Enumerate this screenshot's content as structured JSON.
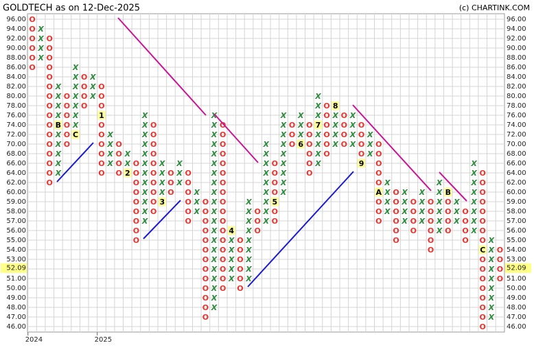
{
  "chart_data": {
    "type": "point-and-figure",
    "title": "GOLDTECH as on 12-Dec-2025",
    "credit": "(c) CHARTINK.COM",
    "x_color": "#2e8b3e",
    "o_color": "#e8332e",
    "grid": true,
    "yticks": [
      {
        "value": 96,
        "label": "96.00"
      },
      {
        "value": 94,
        "label": "94.00"
      },
      {
        "value": 92,
        "label": "92.00"
      },
      {
        "value": 90,
        "label": "90.00"
      },
      {
        "value": 88,
        "label": "88.00"
      },
      {
        "value": 86,
        "label": "86.00"
      },
      {
        "value": 84,
        "label": "84.00"
      },
      {
        "value": 82,
        "label": "82.00"
      },
      {
        "value": 80,
        "label": "80.00"
      },
      {
        "value": 78,
        "label": "78.00"
      },
      {
        "value": 76,
        "label": "76.00"
      },
      {
        "value": 74,
        "label": "74.00"
      },
      {
        "value": 72,
        "label": "72.00"
      },
      {
        "value": 70,
        "label": "70.00"
      },
      {
        "value": 68,
        "label": "68.00"
      },
      {
        "value": 66,
        "label": "66.00"
      },
      {
        "value": 64,
        "label": "64.00"
      },
      {
        "value": 62,
        "label": "62.00"
      },
      {
        "value": 60,
        "label": "60.00"
      },
      {
        "value": 59,
        "label": "59.00"
      },
      {
        "value": 58,
        "label": "58.00"
      },
      {
        "value": 57,
        "label": "57.00"
      },
      {
        "value": 56,
        "label": "56.00"
      },
      {
        "value": 55,
        "label": "55.00"
      },
      {
        "value": 54,
        "label": "54.00"
      },
      {
        "value": 53,
        "label": "53.00"
      },
      {
        "value": 52,
        "label": "52.00"
      },
      {
        "value": 51,
        "label": "51.00"
      },
      {
        "value": 50,
        "label": "50.00"
      },
      {
        "value": 49,
        "label": "49.00"
      },
      {
        "value": 48,
        "label": "48.00"
      },
      {
        "value": 47,
        "label": "47.00"
      },
      {
        "value": 46,
        "label": "46.00"
      }
    ],
    "last_price": {
      "value": 52.09,
      "label": "52.09"
    },
    "categories": [
      "2024",
      null,
      null,
      null,
      null,
      null,
      null,
      null,
      "2025",
      null,
      null,
      null,
      null,
      null,
      null,
      null,
      null,
      null,
      null,
      null,
      null,
      null,
      null,
      null,
      null,
      null,
      null,
      null,
      null,
      null,
      null,
      null,
      null,
      null,
      null,
      null,
      null,
      null,
      null,
      null,
      null,
      null,
      null,
      null,
      null,
      null,
      null,
      null,
      null,
      null,
      null,
      null,
      null,
      null,
      null
    ],
    "columns": [
      {
        "type": "O",
        "from": 96,
        "to": 86
      },
      {
        "type": "X",
        "from": 88,
        "to": 94
      },
      {
        "type": "O",
        "from": 92,
        "to": 62
      },
      {
        "type": "X",
        "from": 64,
        "to": 82,
        "markers": [
          {
            "level": 74,
            "label": "B"
          }
        ]
      },
      {
        "type": "O",
        "from": 80,
        "to": 70
      },
      {
        "type": "X",
        "from": 72,
        "to": 86,
        "markers": [
          {
            "level": 72,
            "label": "C"
          }
        ]
      },
      {
        "type": "O",
        "from": 84,
        "to": 78
      },
      {
        "type": "X",
        "from": 80,
        "to": 84
      },
      {
        "type": "O",
        "from": 82,
        "to": 64,
        "markers": [
          {
            "level": 76,
            "label": "1"
          }
        ]
      },
      {
        "type": "X",
        "from": 66,
        "to": 72
      },
      {
        "type": "O",
        "from": 70,
        "to": 64
      },
      {
        "type": "X",
        "from": 64,
        "to": 68,
        "markers": [
          {
            "level": 64,
            "label": "2"
          }
        ]
      },
      {
        "type": "O",
        "from": 66,
        "to": 55
      },
      {
        "type": "X",
        "from": 57,
        "to": 76
      },
      {
        "type": "O",
        "from": 74,
        "to": 58
      },
      {
        "type": "X",
        "from": 59,
        "to": 66,
        "markers": [
          {
            "level": 59,
            "label": "3"
          }
        ]
      },
      {
        "type": "O",
        "from": 64,
        "to": 60
      },
      {
        "type": "X",
        "from": 62,
        "to": 66
      },
      {
        "type": "O",
        "from": 64,
        "to": 57
      },
      {
        "type": "X",
        "from": 58,
        "to": 60
      },
      {
        "type": "O",
        "from": 59,
        "to": 47
      },
      {
        "type": "X",
        "from": 48,
        "to": 76
      },
      {
        "type": "O",
        "from": 74,
        "to": 50
      },
      {
        "type": "X",
        "from": 51,
        "to": 56,
        "markers": [
          {
            "level": 56,
            "label": "4"
          }
        ]
      },
      {
        "type": "O",
        "from": 55,
        "to": 50
      },
      {
        "type": "X",
        "from": 51,
        "to": 59
      },
      {
        "type": "O",
        "from": 58,
        "to": 56
      },
      {
        "type": "X",
        "from": 57,
        "to": 70
      },
      {
        "type": "O",
        "from": 66,
        "to": 57,
        "markers": [
          {
            "level": 59,
            "label": "5"
          }
        ]
      },
      {
        "type": "X",
        "from": 60,
        "to": 76
      },
      {
        "type": "O",
        "from": 74,
        "to": 70
      },
      {
        "type": "X",
        "from": 70,
        "to": 76,
        "markers": [
          {
            "level": 70,
            "label": "6"
          }
        ]
      },
      {
        "type": "O",
        "from": 74,
        "to": 64
      },
      {
        "type": "X",
        "from": 66,
        "to": 80,
        "markers": [
          {
            "level": 74,
            "label": "7"
          }
        ]
      },
      {
        "type": "O",
        "from": 78,
        "to": 68
      },
      {
        "type": "X",
        "from": 70,
        "to": 78,
        "markers": [
          {
            "level": 78,
            "label": "8"
          }
        ]
      },
      {
        "type": "O",
        "from": 76,
        "to": 70
      },
      {
        "type": "X",
        "from": 70,
        "to": 76
      },
      {
        "type": "O",
        "from": 74,
        "to": 66,
        "markers": [
          {
            "level": 66,
            "label": "9"
          }
        ]
      },
      {
        "type": "X",
        "from": 68,
        "to": 72
      },
      {
        "type": "O",
        "from": 70,
        "to": 57,
        "markers": [
          {
            "level": 60,
            "label": "A"
          }
        ]
      },
      {
        "type": "X",
        "from": 58,
        "to": 62
      },
      {
        "type": "O",
        "from": 60,
        "to": 55
      },
      {
        "type": "X",
        "from": 57,
        "to": 60
      },
      {
        "type": "O",
        "from": 59,
        "to": 56
      },
      {
        "type": "X",
        "from": 57,
        "to": 60
      },
      {
        "type": "O",
        "from": 59,
        "to": 54
      },
      {
        "type": "X",
        "from": 56,
        "to": 62
      },
      {
        "type": "O",
        "from": 60,
        "to": 56,
        "markers": [
          {
            "level": 60,
            "label": "B"
          }
        ]
      },
      {
        "type": "X",
        "from": 57,
        "to": 59
      },
      {
        "type": "O",
        "from": 58,
        "to": 55
      },
      {
        "type": "X",
        "from": 56,
        "to": 66
      },
      {
        "type": "O",
        "from": 64,
        "to": 46,
        "markers": [
          {
            "level": 54,
            "label": "C"
          }
        ]
      },
      {
        "type": "X",
        "from": 47,
        "to": 55
      },
      {
        "type": "O",
        "from": 54,
        "to": 51
      }
    ]
  }
}
